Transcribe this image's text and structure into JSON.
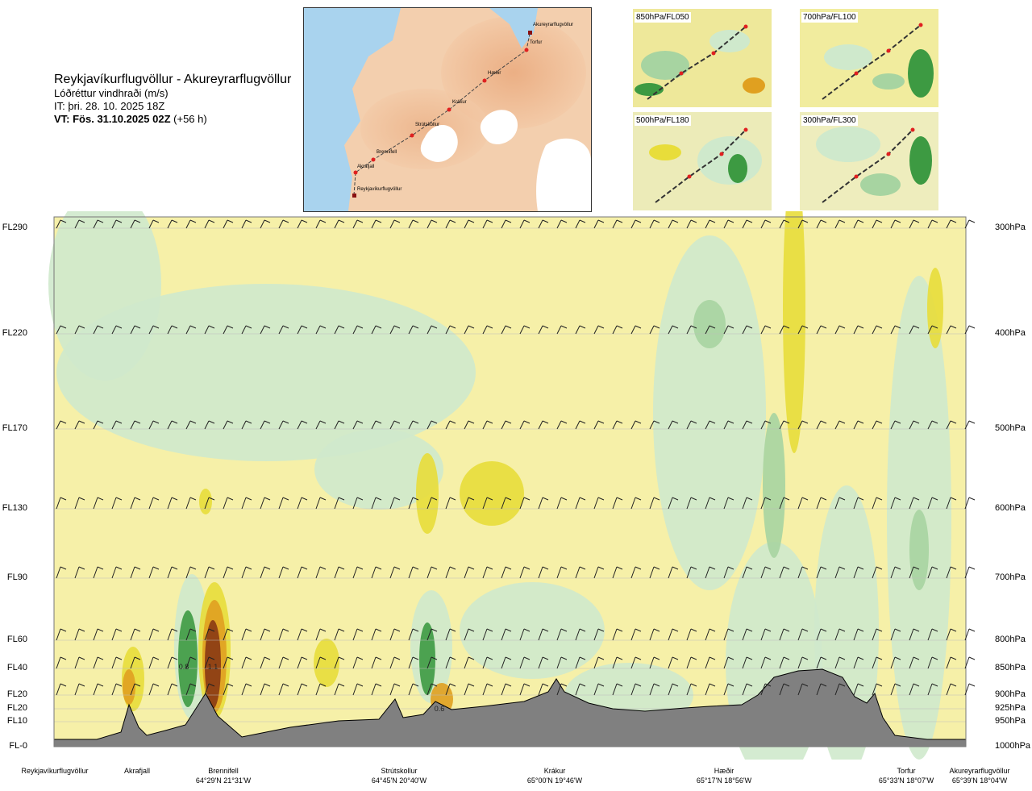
{
  "header": {
    "route": "Reykjavíkurflugvöllur - Akureyrarflugvöllur",
    "subtitle": "Lóðréttur vindhraði (m/s)",
    "issue_time": "IT: þri. 28. 10. 2025 18Z",
    "valid_time": "VT: Fös. 31.10.2025 02Z",
    "lead": "(+56 h)"
  },
  "map": {
    "waypoints": [
      "Akureyrarflugvöllur",
      "Torfur",
      "Hæðir",
      "Krákur",
      "Strútskollur",
      "Brennifell",
      "Akrafjall",
      "Reykjavíkurflugvöllur"
    ]
  },
  "thumbnails": [
    "850hPa/FL050",
    "700hPa/FL100",
    "500hPa/FL180",
    "300hPa/FL300"
  ],
  "chart_data": {
    "type": "heatmap",
    "title": "Lóðréttur vindhraði (m/s)",
    "flight_levels": [
      "FL290",
      "FL220",
      "FL170",
      "FL130",
      "FL90",
      "FL60",
      "FL40",
      "FL20",
      "FL20",
      "FL10",
      "FL-0"
    ],
    "pressure_levels": [
      "300hPa",
      "400hPa",
      "500hPa",
      "600hPa",
      "700hPa",
      "800hPa",
      "850hPa",
      "900hPa",
      "925hPa",
      "950hPa",
      "1000hPa"
    ],
    "pressure_values": [
      300,
      400,
      500,
      600,
      700,
      800,
      850,
      900,
      925,
      950,
      1000
    ],
    "locations": [
      {
        "name": "Reykjavíkurflugvöllur",
        "coord": ""
      },
      {
        "name": "Akrafjall",
        "coord": ""
      },
      {
        "name": "Brennifell",
        "coord": "64°29'N 21°31'W"
      },
      {
        "name": "Strútskollur",
        "coord": "64°45'N 20°40'W"
      },
      {
        "name": "Krákur",
        "coord": "65°00'N 19°46'W"
      },
      {
        "name": "Hæðir",
        "coord": "65°17'N 18°56'W"
      },
      {
        "name": "Torfur",
        "coord": "65°33'N 18°07'W"
      },
      {
        "name": "Akureyrarflugvöllur",
        "coord": "65°39'N 18°04'W"
      }
    ],
    "annotations": [
      "0.8",
      "1.1",
      "0.6"
    ],
    "colors": {
      "background": "#f6f0a8",
      "weak_down": "#fffbd8",
      "light_green": "#cfe9cc",
      "mid_green": "#a7d4a1",
      "dark_green": "#3d9a42",
      "deep_green": "#1a7a2a",
      "yellow": "#e8dd3a",
      "orange": "#e0a020",
      "brown": "#8a3a14",
      "terrain": "#808080"
    }
  }
}
